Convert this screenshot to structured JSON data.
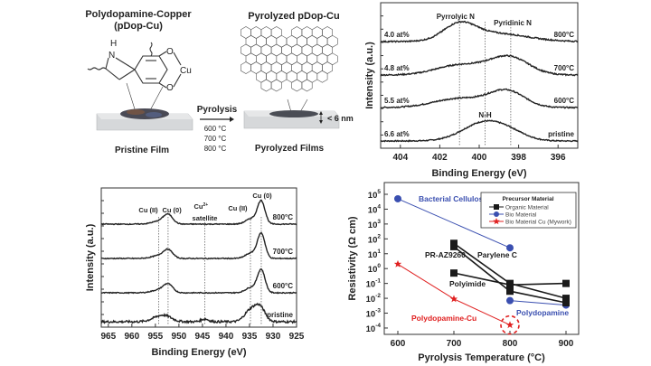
{
  "schematic": {
    "title_left": "Polydopamine-Copper",
    "title_left_sub": "(pDop-Cu)",
    "title_right": "Pyrolyzed pDop-Cu",
    "atoms": {
      "h": "H",
      "n": "N",
      "o1": "O",
      "o2": "O",
      "cu": "Cu"
    },
    "arrow_label": "Pyrolysis",
    "temperatures": [
      "600 °C",
      "700 °C",
      "800 °C"
    ],
    "thickness": "< 6 nm",
    "left_caption": "Pristine Film",
    "right_caption": "Pyrolyzed Films"
  },
  "chart_data": [
    {
      "id": "n1s",
      "type": "line",
      "title": "",
      "xlabel": "Binding Energy (eV)",
      "ylabel": "Intensity (a.u.)",
      "xlim": [
        405,
        395
      ],
      "xticks": [
        404,
        402,
        400,
        398,
        396
      ],
      "xtick_labels": [
        "404",
        "402",
        "400",
        "398",
        "396"
      ],
      "reference_lines": [
        {
          "x": 401.0,
          "label": "Pyrrolyic N"
        },
        {
          "x": 398.4,
          "label": "Pyridinic N"
        },
        {
          "x": 399.7,
          "label": "N-H"
        }
      ],
      "series": [
        {
          "name": "pristine",
          "n_content": "6.6 at%",
          "offset": 8,
          "peaks": [
            [
              399.7,
              21,
              1.1
            ],
            [
              398.3,
              5,
              0.8
            ]
          ],
          "noise": 0.6
        },
        {
          "name": "600°C",
          "n_content": "5.5 at%",
          "offset": 45,
          "peaks": [
            [
              401.0,
              10,
              1.3
            ],
            [
              398.6,
              18,
              0.9
            ]
          ],
          "noise": 0.7
        },
        {
          "name": "700°C",
          "n_content": "4.8 at%",
          "offset": 81,
          "peaks": [
            [
              401.0,
              11,
              1.2
            ],
            [
              398.5,
              20,
              1.0
            ]
          ],
          "noise": 0.7
        },
        {
          "name": "800°C",
          "n_content": "4.0 at%",
          "offset": 118,
          "peaks": [
            [
              401.0,
              17,
              0.8
            ],
            [
              399.2,
              9,
              1.6
            ]
          ],
          "noise": 0.7
        }
      ]
    },
    {
      "id": "cu2p",
      "type": "line",
      "title": "",
      "xlabel": "Binding Energy (eV)",
      "ylabel": "Intensity (a.u.)",
      "xlim": [
        966.5,
        925
      ],
      "xticks": [
        965,
        960,
        955,
        950,
        945,
        940,
        935,
        930,
        925
      ],
      "xtick_labels": [
        "965",
        "960",
        "955",
        "950",
        "945",
        "940",
        "935",
        "930",
        "925"
      ],
      "reference_lines": [
        {
          "x": 954.3,
          "label": "Cu (II)"
        },
        {
          "x": 952.3,
          "label": "Cu (0)"
        },
        {
          "x": 944.5,
          "label": "Cu2+ satellite",
          "label_main": "Cu",
          "label_sup": "2+",
          "label_sub": "satellite"
        },
        {
          "x": 934.8,
          "label": "Cu (II)"
        },
        {
          "x": 932.5,
          "label": "Cu (0)"
        }
      ],
      "series": [
        {
          "name": "pristine",
          "offset": 6,
          "peaks": [
            [
              932.8,
              16,
              1.1
            ],
            [
              934.9,
              12,
              1.2
            ],
            [
              952.7,
              5,
              1.4
            ],
            [
              954.6,
              4,
              1.5
            ],
            [
              944.5,
              3,
              0.8
            ]
          ],
          "noise": 1.2
        },
        {
          "name": "600°C",
          "offset": 38,
          "peaks": [
            [
              932.5,
              25,
              0.8
            ],
            [
              934.6,
              6,
              1.2
            ],
            [
              952.3,
              9,
              1.0
            ],
            [
              954.3,
              3,
              1.5
            ]
          ],
          "noise": 0.5
        },
        {
          "name": "700°C",
          "offset": 76,
          "peaks": [
            [
              932.5,
              27,
              0.8
            ],
            [
              934.6,
              6,
              1.2
            ],
            [
              952.3,
              9,
              1.0
            ],
            [
              954.3,
              3,
              1.5
            ]
          ],
          "noise": 0.5
        },
        {
          "name": "800°C",
          "offset": 114,
          "peaks": [
            [
              932.5,
              25,
              0.8
            ],
            [
              934.6,
              6,
              1.2
            ],
            [
              952.3,
              10,
              1.0
            ],
            [
              954.3,
              3,
              1.5
            ]
          ],
          "noise": 0.5
        }
      ]
    },
    {
      "id": "resistivity",
      "type": "scatter",
      "title": "",
      "xlabel": "Pyrolysis Temperature (°C)",
      "ylabel": "Resistivity (Ω cm)",
      "xlim": [
        580,
        920
      ],
      "ylim": [
        5e-05,
        200000
      ],
      "yscale": "log",
      "xticks": [
        600,
        700,
        800,
        900
      ],
      "xtick_labels": [
        "600",
        "700",
        "800",
        "900"
      ],
      "yticks": [
        {
          "base": "10",
          "exp": "5"
        },
        {
          "base": "10",
          "exp": "4"
        },
        {
          "base": "10",
          "exp": "3"
        },
        {
          "base": "10",
          "exp": "2"
        },
        {
          "base": "10",
          "exp": "1"
        },
        {
          "base": "10",
          "exp": "0"
        },
        {
          "base": "10",
          "exp": "-1"
        },
        {
          "base": "10",
          "exp": "-2"
        },
        {
          "base": "10",
          "exp": "-3"
        },
        {
          "base": "10",
          "exp": "-4"
        }
      ],
      "legend": {
        "title": "Precursor Material",
        "placement": "top-right",
        "entries": [
          {
            "label": "Organic Material",
            "marker": "square",
            "color": "#1a1a1a"
          },
          {
            "label": "Bio Material",
            "marker": "circle",
            "color": "#3a4fb0"
          },
          {
            "label": "Bio Material Cu (Mywork)",
            "marker": "star",
            "color": "#e02020"
          }
        ]
      },
      "series": [
        {
          "name": "Bacterial Cellulose",
          "group": "Bio Material",
          "x": [
            600,
            800
          ],
          "y": [
            50000,
            25
          ]
        },
        {
          "name": "Polydopamine",
          "group": "Bio Material",
          "x": [
            800,
            900
          ],
          "y": [
            0.007,
            0.0035
          ]
        },
        {
          "name": "Polydopamine-Cu",
          "group": "Bio Material Cu (Mywork)",
          "x": [
            600,
            700,
            800
          ],
          "y": [
            2,
            0.009,
            0.00016
          ],
          "highlight": 800
        },
        {
          "name": "PR-AZ9260",
          "group": "Organic Material",
          "x": [
            700,
            800,
            900
          ],
          "y": [
            30,
            0.03,
            0.005
          ]
        },
        {
          "name": "Parylene C",
          "group": "Organic Material",
          "x": [
            700,
            800,
            900
          ],
          "y": [
            50,
            0.1,
            0.01
          ]
        },
        {
          "name": "Polyimide",
          "group": "Organic Material",
          "x": [
            700,
            800,
            900
          ],
          "y": [
            0.5,
            0.08,
            0.1
          ]
        }
      ]
    }
  ],
  "colors": {
    "organic": "#1a1a1a",
    "bio": "#3a4fb0",
    "bio_cu": "#e02020",
    "axis": "#333333"
  }
}
